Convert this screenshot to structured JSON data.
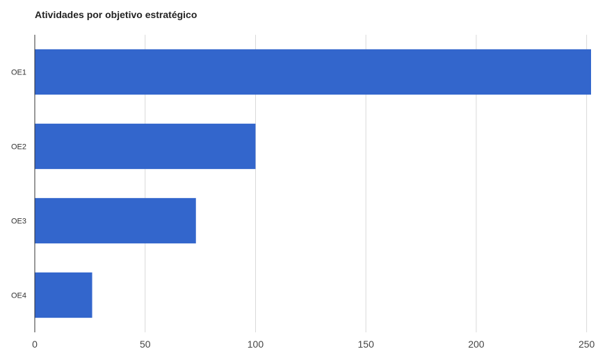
{
  "chart_data": {
    "type": "bar",
    "orientation": "horizontal",
    "title": "Atividades por objetivo estratégico",
    "xlabel": "",
    "ylabel": "",
    "categories": [
      "OE1",
      "OE2",
      "OE3",
      "OE4"
    ],
    "values": [
      252,
      100,
      73,
      26
    ],
    "xlim": [
      0,
      252
    ],
    "x_ticks": [
      "0",
      "50",
      "100",
      "150",
      "200",
      "250"
    ],
    "grid": "vertical",
    "legend": "none",
    "bar_color": "#3366cc"
  }
}
